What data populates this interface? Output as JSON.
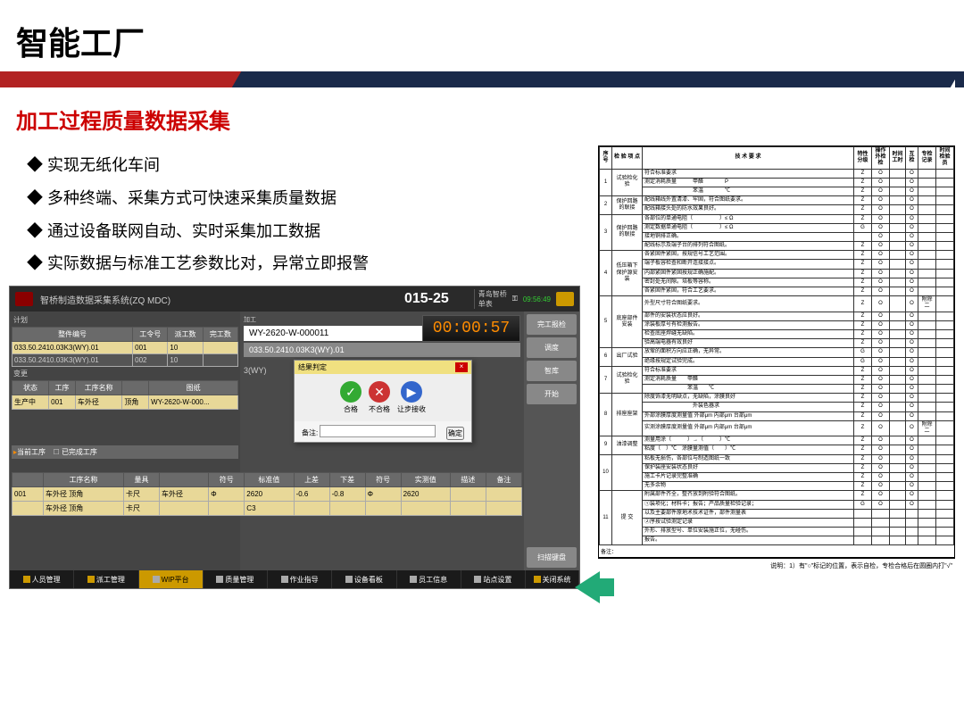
{
  "page": {
    "title": "智能工厂",
    "subtitle": "加工过程质量数据采集",
    "bullets": [
      "实现无纸化车间",
      "多种终端、采集方式可快速采集质量数据",
      "通过设备联网自动、实时采集加工数据",
      "实际数据与标准工艺参数比对，异常立即报警"
    ]
  },
  "app": {
    "name": "智桥制造数据采集系统(ZQ MDC)",
    "big": "015-25",
    "user": "青岛智桥",
    "role": "单表",
    "clock": "09:56:49",
    "plan_label": "计划",
    "orders": {
      "headers": [
        "整件编号",
        "工令号",
        "派工数",
        "完工数"
      ],
      "rows": [
        [
          "033.50.2410.03K3(WY).01",
          "001",
          "10",
          ""
        ],
        [
          "033.50.2410.03K3(WY).01",
          "002",
          "10",
          ""
        ]
      ]
    },
    "change_label": "变更",
    "ops": {
      "headers": [
        "状态",
        "工序",
        "工序名称",
        "图纸"
      ],
      "rows": [
        [
          "生产中",
          "001",
          "车外径",
          "顶角",
          "WY-2620-W-000..."
        ]
      ]
    },
    "current_tab": "当前工序",
    "done_tab": "已完成工序",
    "detail": {
      "headers": [
        "工序名称",
        "量具",
        "符号",
        "标准值",
        "上差",
        "下差",
        "符号",
        "实测值",
        "描述",
        "备注"
      ],
      "rows": [
        [
          "001",
          "车外径  顶角",
          "卡尺",
          "车外径",
          "Φ",
          "2620",
          "-0.6",
          "-0.8",
          "Φ",
          "2620",
          "",
          ""
        ],
        [
          "",
          "车外径  顶角",
          "卡尺",
          "",
          "",
          "C3",
          "",
          "",
          "",
          "",
          "",
          ""
        ]
      ]
    },
    "side": [
      "完工报检",
      "调度",
      "智库",
      "开始",
      "扫描键盘"
    ],
    "wo": "WY-2620-W-000011",
    "wo_sub": "033.50.2410.03K3(WY).01",
    "wo_sub2": "3(WY)",
    "timer": "00:00:57",
    "dialog": {
      "title": "结果判定",
      "ok": "合格",
      "no": "不合格",
      "skip": "让步接收",
      "note": "备注:",
      "confirm": "确定"
    },
    "footer": [
      "人员管理",
      "派工管理",
      "WIP平台",
      "质量管理",
      "作业指导",
      "设备看板",
      "员工信息",
      "站点设置"
    ],
    "footer_close": "关闭系统"
  },
  "sheet": {
    "headers": [
      "序号",
      "检 验 项 点",
      "技  术  要  求",
      "特性分级",
      "操作外检检",
      "时间工时",
      "互检",
      "专检记录",
      "时间检验员"
    ],
    "groups": [
      {
        "cat": "试验检化验",
        "rows": [
          {
            "t": "符合标准要求",
            "g": "Z",
            "c": "O"
          },
          {
            "t": "测定消耗质量　　　甲醛　　　　P",
            "g": "Z",
            "c": "O"
          },
          {
            "t": "　　　　　　　　　苯温　　　　℃",
            "g": "Z",
            "c": "O"
          }
        ]
      },
      {
        "cat": "保护回路的联接",
        "rows": [
          {
            "t": "配线箱线外置清漆、牢固，符合图纸要求。",
            "g": "Z",
            "c": "O"
          },
          {
            "t": "配线箱接头处的防水效果良好。",
            "g": "Z",
            "c": "O"
          }
        ]
      },
      {
        "cat": "保护回路的联接",
        "rows": [
          {
            "t": "各部位的单通电阻（　　　　　）≤ Ω",
            "g": "Z",
            "c": "O"
          },
          {
            "t": "测定数据单通电阻（　　　　　）≤ Ω",
            "g": "G",
            "c": "O"
          },
          {
            "t": "接地铜排正确。",
            "g": "",
            "c": "O"
          },
          {
            "t": "配线标示及端子台的排列符合图纸。",
            "g": "Z",
            "c": "O"
          }
        ]
      },
      {
        "cat": "低压箱下保护源安装",
        "rows": [
          {
            "t": "各紧固件紧固，按规信号工艺范围。",
            "g": "Z",
            "c": "O"
          },
          {
            "t": "端子板容检查和断开连接接点。",
            "g": "Z",
            "c": "O"
          },
          {
            "t": "内部紧固件紧固按规正确施配。",
            "g": "Z",
            "c": "O"
          },
          {
            "t": "密封处无间隙。培板等容称。",
            "g": "Z",
            "c": "O"
          },
          {
            "t": "各紧固件紧固，符合工艺要求。",
            "g": "Z",
            "c": "O"
          }
        ]
      },
      {
        "cat": "底座部件安装",
        "rows": [
          {
            "t": "外型尺寸符合图纸要求。",
            "g": "Z",
            "c": "O",
            "r": "附除二"
          },
          {
            "t": "部件的安装状态应良好。",
            "g": "Z",
            "c": "O"
          },
          {
            "t": "涂装板厚号有检测报告。",
            "g": "Z",
            "c": "O"
          },
          {
            "t": "检查底座焊缝无缺陷。",
            "g": "Z",
            "c": "O"
          },
          {
            "t": "验高端电器有效良好",
            "g": "Z",
            "c": "O"
          }
        ]
      },
      {
        "cat": "出厂试验",
        "rows": [
          {
            "t": "放荤的面积方向应正确，无异常。",
            "g": "G",
            "c": "O"
          },
          {
            "t": "绝缘按规定试验完成。",
            "g": "G",
            "c": "O"
          }
        ]
      },
      {
        "cat": "试验检化验",
        "rows": [
          {
            "t": "符合标准要求",
            "g": "Z",
            "c": "O"
          },
          {
            "t": "测定消耗质量　　甲醛　　　　",
            "g": "Z",
            "c": "O"
          },
          {
            "t": "　　　　　　　　苯温　　℃",
            "g": "Z",
            "c": "O"
          }
        ]
      },
      {
        "cat": "排座座架",
        "rows": [
          {
            "t": "除度饰漆无明缺点，无缺陷，涂膜良好",
            "g": "Z",
            "c": "O"
          },
          {
            "t": "　　　　　　　　　外装色器求",
            "g": "Z",
            "c": "O"
          },
          {
            "t": "外部涂膜厚度测量值 外部μm 内部μm 台部μm",
            "g": "Z",
            "c": "O"
          },
          {
            "t": "实测涂膜厚度测量值 外部μm 内部μm 台部μm",
            "g": "Z",
            "c": "O",
            "r": "附除二"
          }
        ]
      },
      {
        "cat": "油漆调整",
        "rows": [
          {
            "t": "测量用涂（　　　）→（　　　）℃",
            "g": "Z",
            "c": "O"
          },
          {
            "t": "粘度（　）℃　涂膜量测值（　　）℃",
            "g": "Z",
            "c": "O"
          }
        ]
      },
      {
        "cat": "",
        "rows": [
          {
            "t": "粘板无损伤，各部位与制造图纸一致",
            "g": "Z",
            "c": "O"
          },
          {
            "t": "保护装座安装状态良好",
            "g": "Z",
            "c": "O"
          },
          {
            "t": "施工卡片记录完整准确",
            "g": "Z",
            "c": "O"
          },
          {
            "t": "无多余物",
            "g": "Z",
            "c": "O"
          }
        ]
      },
      {
        "cat": "提 交",
        "rows": [
          {
            "t": "附属部件齐全，整齐放到附验符合图纸。",
            "g": "Z",
            "c": "O"
          },
          {
            "t": "①装项化；材料卡；报告；产品质量检验记录；",
            "g": "G",
            "c": "O"
          },
          {
            "t": "以及主要部件原地术技术证件，部件测量表",
            "g": "",
            "c": ""
          },
          {
            "t": "②序按试验测定记录",
            "g": "",
            "c": ""
          },
          {
            "t": "外形、排放型号、单位安装施正位，无碰伤。",
            "g": "",
            "c": ""
          },
          {
            "t": "报告。",
            "g": "",
            "c": ""
          }
        ]
      }
    ],
    "foot_label": "备注：",
    "foot_note": "说明：1）有\"○\"标记的位置，表示自检，专检合格后在圆圈内打\"√\""
  }
}
